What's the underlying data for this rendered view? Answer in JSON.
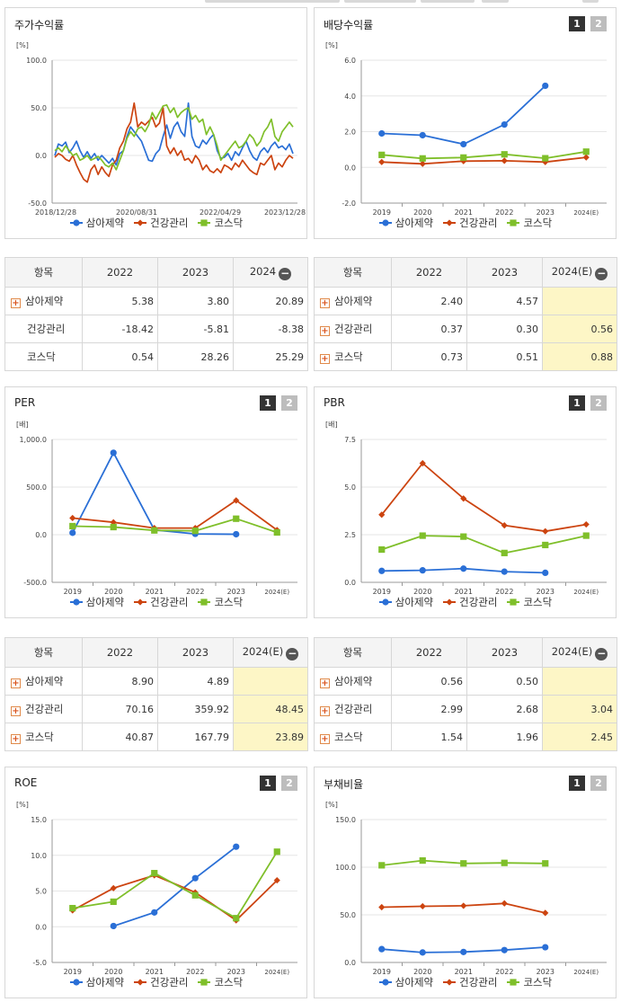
{
  "series_names": [
    "삼아제약",
    "건강관리",
    "코스닥"
  ],
  "colors": {
    "s1": "#2a6fd6",
    "s2": "#cc4410",
    "s3": "#7fbf2a"
  },
  "switch_labels": [
    "1",
    "2"
  ],
  "panels": {
    "stock_return": {
      "title": "주가수익률",
      "unit": "[%]"
    },
    "dividend": {
      "title": "배당수익률",
      "unit": "[%]"
    },
    "per": {
      "title": "PER",
      "unit": "[배]"
    },
    "pbr": {
      "title": "PBR",
      "unit": "[배]"
    },
    "roe": {
      "title": "ROE",
      "unit": "[%]"
    },
    "debt": {
      "title": "부채비율",
      "unit": "[%]"
    }
  },
  "tables": {
    "t1": {
      "headers": [
        "항목",
        "2022",
        "2023",
        "2024"
      ],
      "rows": [
        {
          "name": "삼아제약",
          "icon": true,
          "values": [
            "5.38",
            "3.80",
            "20.89"
          ]
        },
        {
          "name": "건강관리",
          "icon": false,
          "values": [
            "-18.42",
            "-5.81",
            "-8.38"
          ]
        },
        {
          "name": "코스닥",
          "icon": false,
          "values": [
            "0.54",
            "28.26",
            "25.29"
          ]
        }
      ]
    },
    "t2": {
      "headers": [
        "항목",
        "2022",
        "2023",
        "2024(E)"
      ],
      "rows": [
        {
          "name": "삼아제약",
          "icon": true,
          "values": [
            "2.40",
            "4.57",
            ""
          ]
        },
        {
          "name": "건강관리",
          "icon": true,
          "values": [
            "0.37",
            "0.30",
            "0.56"
          ]
        },
        {
          "name": "코스닥",
          "icon": true,
          "values": [
            "0.73",
            "0.51",
            "0.88"
          ]
        }
      ]
    },
    "t3": {
      "headers": [
        "항목",
        "2022",
        "2023",
        "2024(E)"
      ],
      "rows": [
        {
          "name": "삼아제약",
          "icon": true,
          "values": [
            "8.90",
            "4.89",
            ""
          ]
        },
        {
          "name": "건강관리",
          "icon": true,
          "values": [
            "70.16",
            "359.92",
            "48.45"
          ]
        },
        {
          "name": "코스닥",
          "icon": true,
          "values": [
            "40.87",
            "167.79",
            "23.89"
          ]
        }
      ]
    },
    "t4": {
      "headers": [
        "항목",
        "2022",
        "2023",
        "2024(E)"
      ],
      "rows": [
        {
          "name": "삼아제약",
          "icon": true,
          "values": [
            "0.56",
            "0.50",
            ""
          ]
        },
        {
          "name": "건강관리",
          "icon": true,
          "values": [
            "2.99",
            "2.68",
            "3.04"
          ]
        },
        {
          "name": "코스닥",
          "icon": true,
          "values": [
            "1.54",
            "1.96",
            "2.45"
          ]
        }
      ]
    }
  },
  "chart_data": [
    {
      "id": "stock_return",
      "type": "line",
      "x_ticks": [
        "2018/12/28",
        "2020/08/31",
        "2022/04/29",
        "2023/12/28"
      ],
      "ylim": [
        -50,
        100
      ],
      "y_ticks": [
        "100.0",
        "50.0",
        "0.0",
        "-50.0"
      ],
      "series": [
        {
          "values": [
            0,
            12,
            10,
            14,
            3,
            8,
            15,
            5,
            -2,
            4,
            -3,
            2,
            -5,
            0,
            -4,
            -8,
            -3,
            -10,
            2,
            5,
            20,
            30,
            25,
            20,
            15,
            5,
            -5,
            -6,
            2,
            6,
            20,
            32,
            18,
            30,
            35,
            25,
            20,
            55,
            20,
            10,
            8,
            16,
            12,
            18,
            22,
            5,
            -3,
            -2,
            2,
            -5,
            4,
            0,
            8,
            15,
            5,
            -2,
            -5,
            4,
            8,
            3,
            10,
            14,
            8,
            10,
            6,
            12,
            2
          ]
        },
        {
          "values": [
            -2,
            2,
            0,
            -4,
            -6,
            0,
            -10,
            -18,
            -25,
            -28,
            -15,
            -10,
            -20,
            -12,
            -18,
            -22,
            -10,
            -5,
            8,
            15,
            28,
            35,
            55,
            30,
            35,
            32,
            36,
            40,
            30,
            34,
            50,
            10,
            2,
            8,
            0,
            5,
            -5,
            -3,
            -8,
            0,
            -5,
            -15,
            -10,
            -16,
            -18,
            -14,
            -18,
            -10,
            -12,
            -15,
            -8,
            -12,
            -5,
            -10,
            -15,
            -18,
            -20,
            -8,
            -10,
            -5,
            0,
            -15,
            -8,
            -12,
            -5,
            0,
            -3
          ]
        },
        {
          "values": [
            5,
            8,
            4,
            10,
            5,
            0,
            2,
            -5,
            -3,
            0,
            -5,
            -3,
            -1,
            -5,
            -10,
            -12,
            -8,
            -15,
            -5,
            5,
            18,
            25,
            20,
            28,
            30,
            25,
            32,
            45,
            38,
            45,
            52,
            53,
            45,
            50,
            40,
            45,
            48,
            50,
            38,
            42,
            35,
            38,
            22,
            30,
            22,
            10,
            -5,
            0,
            5,
            10,
            15,
            8,
            10,
            15,
            22,
            18,
            10,
            15,
            25,
            30,
            38,
            20,
            15,
            25,
            30,
            35,
            30
          ]
        }
      ]
    },
    {
      "id": "dividend",
      "type": "line",
      "categories": [
        "2019",
        "2020",
        "2021",
        "2022",
        "2023",
        "2024(E)"
      ],
      "ylim": [
        -2,
        6
      ],
      "y_ticks": [
        "6.0",
        "4.0",
        "2.0",
        "0.0",
        "-2.0"
      ],
      "series": [
        {
          "values": [
            1.9,
            1.8,
            1.3,
            2.4,
            4.57,
            null
          ]
        },
        {
          "values": [
            0.3,
            0.2,
            0.35,
            0.37,
            0.3,
            0.56
          ]
        },
        {
          "values": [
            0.7,
            0.5,
            0.55,
            0.73,
            0.51,
            0.88
          ]
        }
      ]
    },
    {
      "id": "per",
      "type": "line",
      "categories": [
        "2019",
        "2020",
        "2021",
        "2022",
        "2023",
        "2024(E)"
      ],
      "ylim": [
        -500,
        1000
      ],
      "y_ticks": [
        "1,000.0",
        "500.0",
        "0.0",
        "-500.0"
      ],
      "series": [
        {
          "values": [
            20,
            860,
            50,
            8.9,
            4.89,
            null
          ]
        },
        {
          "values": [
            175,
            130,
            70,
            70.16,
            359.92,
            48.45
          ]
        },
        {
          "values": [
            90,
            80,
            45,
            40.87,
            167.79,
            23.89
          ]
        }
      ]
    },
    {
      "id": "pbr",
      "type": "line",
      "categories": [
        "2019",
        "2020",
        "2021",
        "2022",
        "2023",
        "2024(E)"
      ],
      "ylim": [
        0,
        7.5
      ],
      "y_ticks": [
        "7.5",
        "5.0",
        "2.5",
        "0.0"
      ],
      "series": [
        {
          "values": [
            0.6,
            0.63,
            0.72,
            0.56,
            0.5,
            null
          ]
        },
        {
          "values": [
            3.55,
            6.25,
            4.4,
            2.99,
            2.68,
            3.04
          ]
        },
        {
          "values": [
            1.72,
            2.45,
            2.4,
            1.54,
            1.96,
            2.45
          ]
        }
      ]
    },
    {
      "id": "roe",
      "type": "line",
      "categories": [
        "2019",
        "2020",
        "2021",
        "2022",
        "2023",
        "2024(E)"
      ],
      "ylim": [
        -5,
        15
      ],
      "y_ticks": [
        "15.0",
        "10.0",
        "5.0",
        "0.0",
        "-5.0"
      ],
      "series": [
        {
          "values": [
            null,
            0.1,
            2,
            6.8,
            11.2,
            null
          ]
        },
        {
          "values": [
            2.3,
            5.4,
            7.2,
            4.8,
            0.9,
            6.5
          ]
        },
        {
          "values": [
            2.6,
            3.5,
            7.5,
            4.4,
            1.2,
            10.5
          ]
        }
      ]
    },
    {
      "id": "debt",
      "type": "line",
      "categories": [
        "2019",
        "2020",
        "2021",
        "2022",
        "2023",
        "2024(E)"
      ],
      "ylim": [
        0,
        150
      ],
      "y_ticks": [
        "150.0",
        "100.0",
        "50.0",
        "0.0"
      ],
      "series": [
        {
          "values": [
            14,
            10.5,
            11,
            13,
            16,
            null
          ]
        },
        {
          "values": [
            58,
            59,
            59.5,
            62,
            52,
            null
          ]
        },
        {
          "values": [
            102,
            107,
            104,
            104.5,
            104,
            null
          ]
        }
      ]
    }
  ]
}
